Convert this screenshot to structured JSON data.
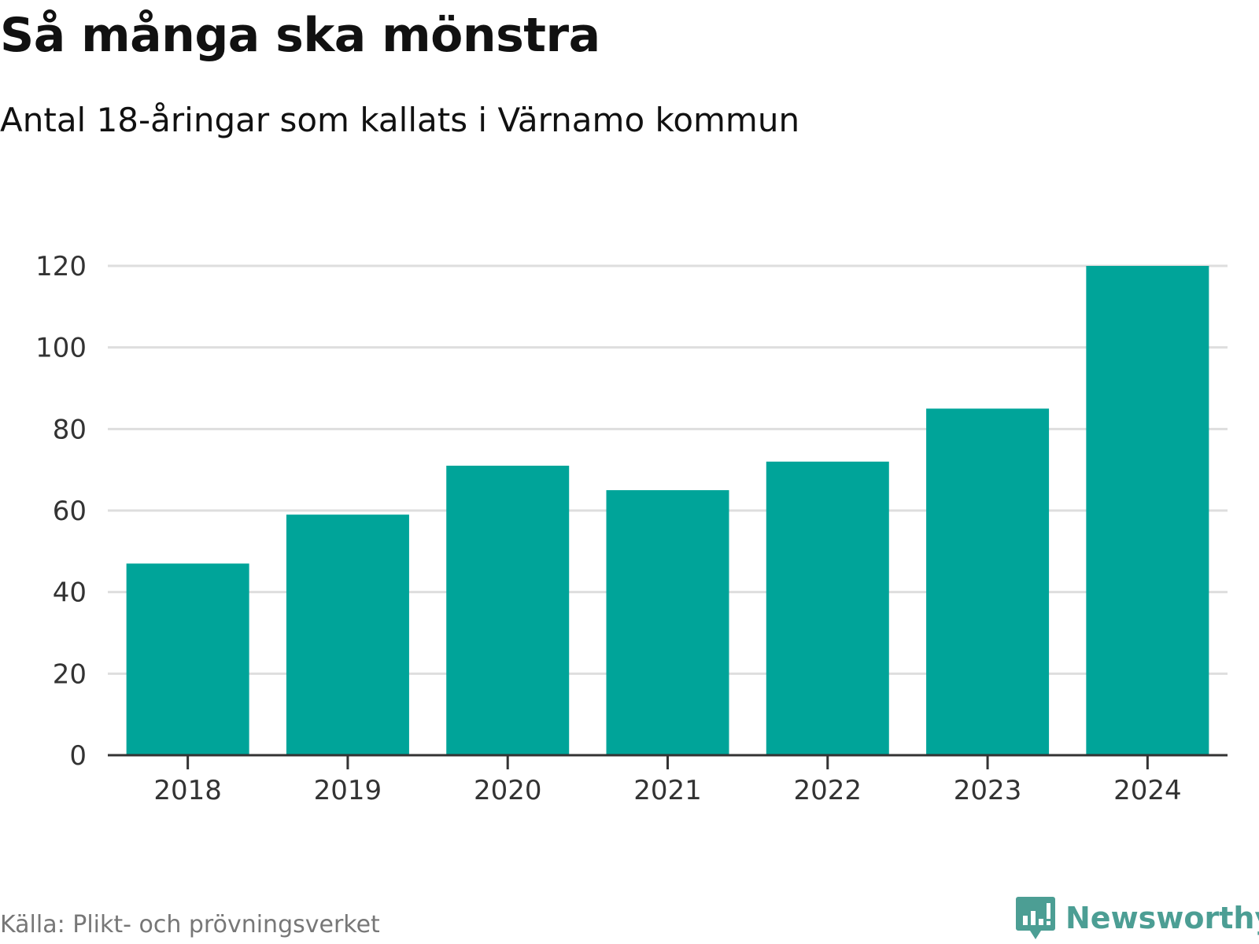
{
  "header": {
    "title": "Så många ska mönstra",
    "subtitle": "Antal 18-åringar som kallats i Värnamo kommun"
  },
  "footer": {
    "source": "Källa: Plikt- och prövningsverket",
    "brand": "Newsworthy"
  },
  "colors": {
    "bar": "#00a499",
    "grid": "#dedede",
    "axis": "#333333",
    "brand": "#4c9e94",
    "source_text": "#777777"
  },
  "chart_data": {
    "type": "bar",
    "title": "Så många ska mönstra",
    "subtitle": "Antal 18-åringar som kallats i Värnamo kommun",
    "categories": [
      "2018",
      "2019",
      "2020",
      "2021",
      "2022",
      "2023",
      "2024"
    ],
    "values": [
      47,
      59,
      71,
      65,
      72,
      85,
      120
    ],
    "xlabel": "",
    "ylabel": "",
    "ylim": [
      0,
      120
    ],
    "yticks": [
      0,
      20,
      40,
      60,
      80,
      100,
      120
    ],
    "grid": true,
    "legend": "none"
  }
}
